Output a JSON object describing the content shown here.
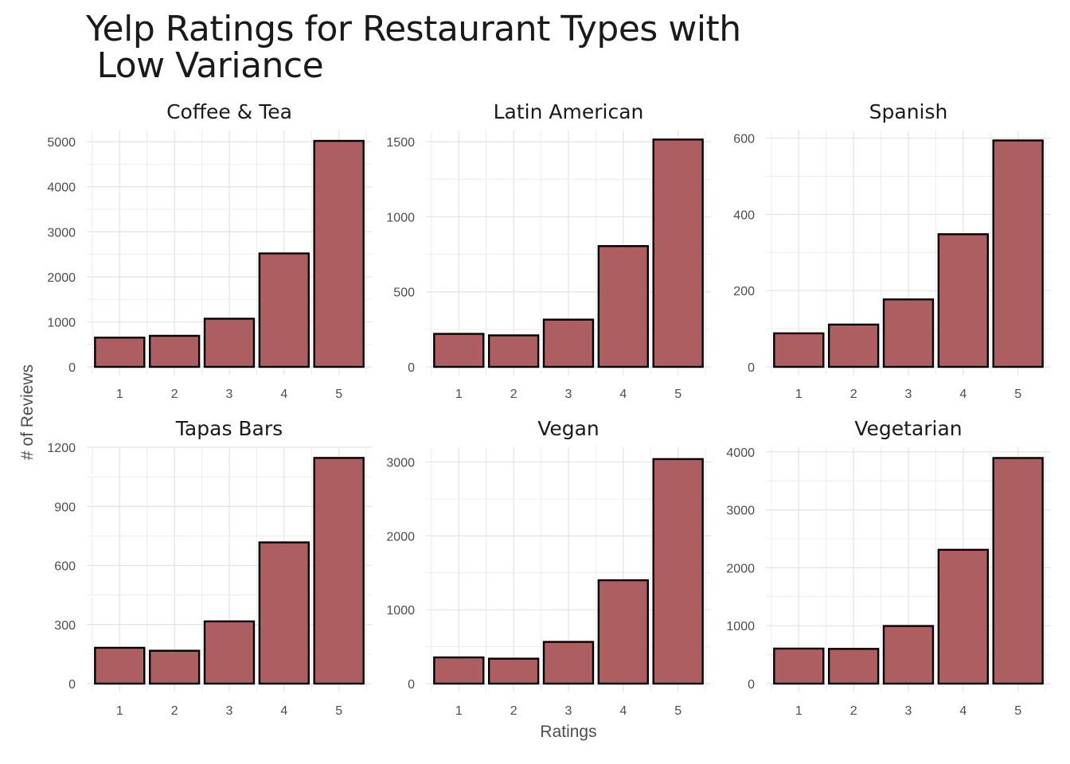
{
  "title": "Yelp Ratings for Restaurant Types with\n Low Variance",
  "ylabel": "# of Reviews",
  "xlabel": "Ratings",
  "colors": {
    "bar_fill": "#a85558",
    "bar_stroke": "#000000",
    "grid": "#e3e3e3"
  },
  "chart_data": [
    {
      "type": "bar",
      "title": "Coffee & Tea",
      "categories": [
        "1",
        "2",
        "3",
        "4",
        "5"
      ],
      "values": [
        650,
        690,
        1070,
        2520,
        5020
      ],
      "ylim": [
        0,
        5250
      ],
      "yticks": [
        0,
        1000,
        2000,
        3000,
        4000,
        5000
      ],
      "ytick_labels": [
        "0",
        "1000",
        "2000",
        "3000",
        "4000",
        "5000"
      ]
    },
    {
      "type": "bar",
      "title": "Latin American",
      "categories": [
        "1",
        "2",
        "3",
        "4",
        "5"
      ],
      "values": [
        220,
        210,
        315,
        805,
        1515
      ],
      "ylim": [
        0,
        1575
      ],
      "yticks": [
        0,
        500,
        1000,
        1500
      ],
      "ytick_labels": [
        "0",
        "500",
        "1000",
        "1500"
      ]
    },
    {
      "type": "bar",
      "title": "Spanish",
      "categories": [
        "1",
        "2",
        "3",
        "4",
        "5"
      ],
      "values": [
        88,
        111,
        177,
        348,
        594
      ],
      "ylim": [
        0,
        620
      ],
      "yticks": [
        0,
        200,
        400,
        600
      ],
      "ytick_labels": [
        "0",
        "200",
        "400",
        "600"
      ]
    },
    {
      "type": "bar",
      "title": "Tapas Bars",
      "categories": [
        "1",
        "2",
        "3",
        "4",
        "5"
      ],
      "values": [
        182,
        167,
        316,
        717,
        1146
      ],
      "ylim": [
        0,
        1200
      ],
      "yticks": [
        0,
        300,
        600,
        900,
        1200
      ],
      "ytick_labels": [
        "0",
        "300",
        "600",
        "900",
        "1200"
      ]
    },
    {
      "type": "bar",
      "title": "Vegan",
      "categories": [
        "1",
        "2",
        "3",
        "4",
        "5"
      ],
      "values": [
        355,
        338,
        565,
        1400,
        3040
      ],
      "ylim": [
        0,
        3200
      ],
      "yticks": [
        0,
        1000,
        2000,
        3000
      ],
      "ytick_labels": [
        "0",
        "1000",
        "2000",
        "3000"
      ]
    },
    {
      "type": "bar",
      "title": "Vegetarian",
      "categories": [
        "1",
        "2",
        "3",
        "4",
        "5"
      ],
      "values": [
        605,
        600,
        995,
        2310,
        3895
      ],
      "ylim": [
        0,
        4080
      ],
      "yticks": [
        0,
        1000,
        2000,
        3000,
        4000
      ],
      "ytick_labels": [
        "0",
        "1000",
        "2000",
        "3000",
        "4000"
      ]
    }
  ]
}
